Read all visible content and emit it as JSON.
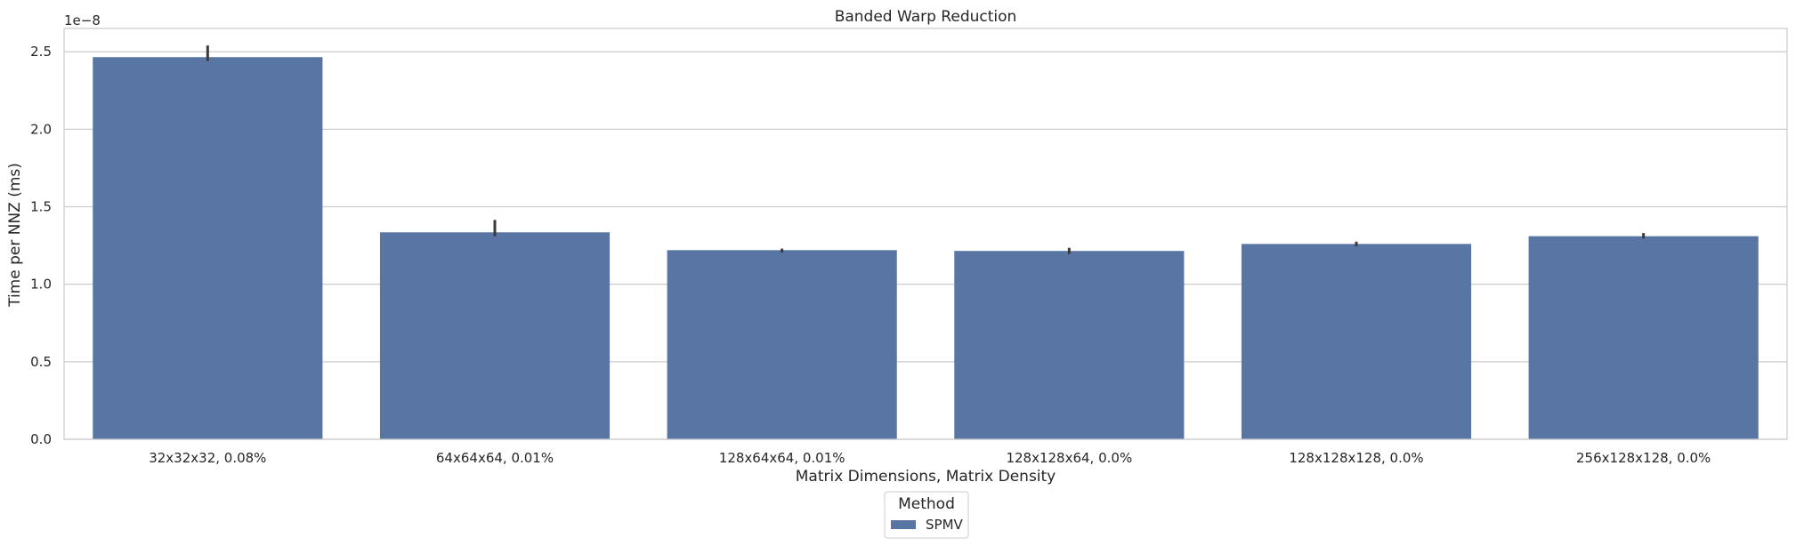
{
  "chart_data": {
    "type": "bar",
    "title": "Banded Warp Reduction",
    "xlabel": "Matrix Dimensions, Matrix Density",
    "ylabel": "Time per NNZ (ms)",
    "y_scale_label": "1e−8",
    "ylim": [
      0,
      2.65
    ],
    "yticks": [
      0.0,
      0.5,
      1.0,
      1.5,
      2.0,
      2.5
    ],
    "ytick_labels": [
      "0.0",
      "0.5",
      "1.0",
      "1.5",
      "2.0",
      "2.5"
    ],
    "grid": true,
    "categories": [
      "32x32x32, 0.08%",
      "64x64x64, 0.01%",
      "128x64x64, 0.01%",
      "128x128x64, 0.0%",
      "128x128x128, 0.0%",
      "256x128x128, 0.0%"
    ],
    "series": [
      {
        "name": "SPMV",
        "color": "#5875a4",
        "values": [
          2.465,
          1.335,
          1.22,
          1.215,
          1.26,
          1.31
        ],
        "err_low": [
          2.44,
          1.31,
          1.205,
          1.195,
          1.245,
          1.295
        ],
        "err_high": [
          2.54,
          1.415,
          1.23,
          1.235,
          1.275,
          1.33
        ]
      }
    ],
    "legend": {
      "title": "Method",
      "placement": "bottom-center"
    }
  }
}
